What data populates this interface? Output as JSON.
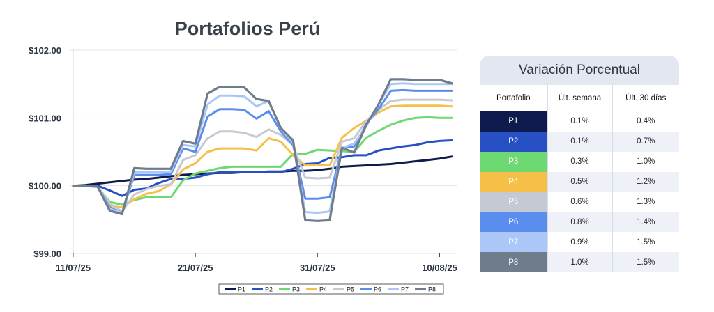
{
  "chart_data": {
    "type": "line",
    "title": "Portafolios Perú",
    "xlabel": "",
    "ylabel": "",
    "ylim": [
      99.0,
      102.0
    ],
    "y_ticks": [
      "$99.00",
      "$100.00",
      "$101.00",
      "$102.00"
    ],
    "x_ticks": [
      {
        "label": "11/07/25",
        "index": 0
      },
      {
        "label": "21/07/25",
        "index": 10
      },
      {
        "label": "31/07/25",
        "index": 20
      },
      {
        "label": "10/08/25",
        "index": 30
      }
    ],
    "grid": "horizontal",
    "legend_position": "bottom",
    "series": [
      {
        "name": "P1",
        "color": "#0f1b4c",
        "width": 3,
        "values": [
          100.0,
          100.01,
          100.03,
          100.05,
          100.07,
          100.09,
          100.1,
          100.12,
          100.14,
          100.16,
          100.17,
          100.18,
          100.19,
          100.19,
          100.2,
          100.2,
          100.21,
          100.21,
          100.22,
          100.22,
          100.23,
          100.25,
          100.28,
          100.29,
          100.3,
          100.31,
          100.32,
          100.34,
          100.36,
          100.38,
          100.4,
          100.43
        ]
      },
      {
        "name": "P2",
        "color": "#2650c4",
        "width": 3,
        "values": [
          100.0,
          100.0,
          100.0,
          99.93,
          99.85,
          99.94,
          99.96,
          100.04,
          100.1,
          100.1,
          100.12,
          100.17,
          100.2,
          100.2,
          100.2,
          100.2,
          100.2,
          100.2,
          100.25,
          100.32,
          100.33,
          100.41,
          100.42,
          100.45,
          100.45,
          100.52,
          100.55,
          100.58,
          100.6,
          100.64,
          100.66,
          100.67
        ]
      },
      {
        "name": "P3",
        "color": "#6ed873",
        "width": 3,
        "values": [
          100.0,
          100.0,
          99.98,
          99.76,
          99.72,
          99.79,
          99.83,
          99.83,
          99.83,
          100.08,
          100.18,
          100.22,
          100.26,
          100.28,
          100.28,
          100.28,
          100.28,
          100.28,
          100.47,
          100.47,
          100.53,
          100.52,
          100.51,
          100.5,
          100.71,
          100.81,
          100.9,
          100.96,
          101.0,
          101.01,
          101.0,
          101.0
        ]
      },
      {
        "name": "P4",
        "color": "#f6bf47",
        "width": 3,
        "values": [
          100.0,
          100.0,
          99.98,
          99.7,
          99.68,
          99.8,
          99.88,
          99.92,
          100.02,
          100.24,
          100.33,
          100.5,
          100.55,
          100.55,
          100.55,
          100.52,
          100.7,
          100.65,
          100.45,
          100.3,
          100.3,
          100.3,
          100.71,
          100.85,
          100.96,
          101.08,
          101.17,
          101.18,
          101.18,
          101.18,
          101.18,
          101.17
        ]
      },
      {
        "name": "P5",
        "color": "#c5cad2",
        "width": 3,
        "values": [
          100.0,
          100.0,
          99.98,
          99.74,
          99.62,
          99.87,
          99.95,
          100.0,
          100.02,
          100.38,
          100.45,
          100.7,
          100.8,
          100.8,
          100.78,
          100.72,
          100.83,
          100.75,
          100.6,
          100.12,
          100.11,
          100.12,
          100.65,
          100.7,
          100.96,
          101.12,
          101.25,
          101.27,
          101.27,
          101.27,
          101.27,
          101.26
        ]
      },
      {
        "name": "P6",
        "color": "#5b8def",
        "width": 3,
        "values": [
          100.0,
          100.0,
          99.98,
          99.68,
          99.6,
          100.16,
          100.16,
          100.16,
          100.17,
          100.55,
          100.5,
          101.02,
          101.13,
          101.13,
          101.12,
          100.99,
          101.1,
          100.8,
          100.6,
          99.81,
          99.81,
          99.83,
          100.56,
          100.58,
          100.91,
          101.13,
          101.4,
          101.41,
          101.4,
          101.4,
          101.4,
          101.4
        ]
      },
      {
        "name": "P7",
        "color": "#abc7f7",
        "width": 3,
        "values": [
          100.0,
          100.0,
          99.98,
          99.66,
          99.6,
          100.2,
          100.2,
          100.2,
          100.21,
          100.6,
          100.58,
          101.2,
          101.33,
          101.33,
          101.32,
          101.17,
          101.25,
          100.84,
          100.63,
          99.61,
          99.6,
          99.62,
          100.56,
          100.62,
          100.88,
          101.2,
          101.5,
          101.51,
          101.5,
          101.5,
          101.5,
          101.5
        ]
      },
      {
        "name": "P8",
        "color": "#6f7c8b",
        "width": 3.2,
        "values": [
          100.0,
          100.0,
          99.99,
          99.63,
          99.58,
          100.26,
          100.25,
          100.25,
          100.25,
          100.66,
          100.62,
          101.36,
          101.46,
          101.46,
          101.45,
          101.28,
          101.25,
          100.85,
          100.67,
          99.49,
          99.48,
          99.49,
          100.56,
          100.49,
          100.9,
          101.2,
          101.57,
          101.57,
          101.56,
          101.56,
          101.56,
          101.51
        ]
      }
    ]
  },
  "table": {
    "title": "Variación Porcentual",
    "headers": [
      "Portafolio",
      "Últ. semana",
      "Últ. 30 días"
    ],
    "rows": [
      {
        "name": "P1",
        "week": "0.1%",
        "month": "0.4%",
        "color": "#0f1b4c"
      },
      {
        "name": "P2",
        "week": "0.1%",
        "month": "0.7%",
        "color": "#2650c4"
      },
      {
        "name": "P3",
        "week": "0.3%",
        "month": "1.0%",
        "color": "#6ed873"
      },
      {
        "name": "P4",
        "week": "0.5%",
        "month": "1.2%",
        "color": "#f6bf47"
      },
      {
        "name": "P5",
        "week": "0.6%",
        "month": "1.3%",
        "color": "#c5cad2"
      },
      {
        "name": "P6",
        "week": "0.8%",
        "month": "1.4%",
        "color": "#5b8def"
      },
      {
        "name": "P7",
        "week": "0.9%",
        "month": "1.5%",
        "color": "#abc7f7"
      },
      {
        "name": "P8",
        "week": "1.0%",
        "month": "1.5%",
        "color": "#6f7c8b"
      }
    ]
  }
}
